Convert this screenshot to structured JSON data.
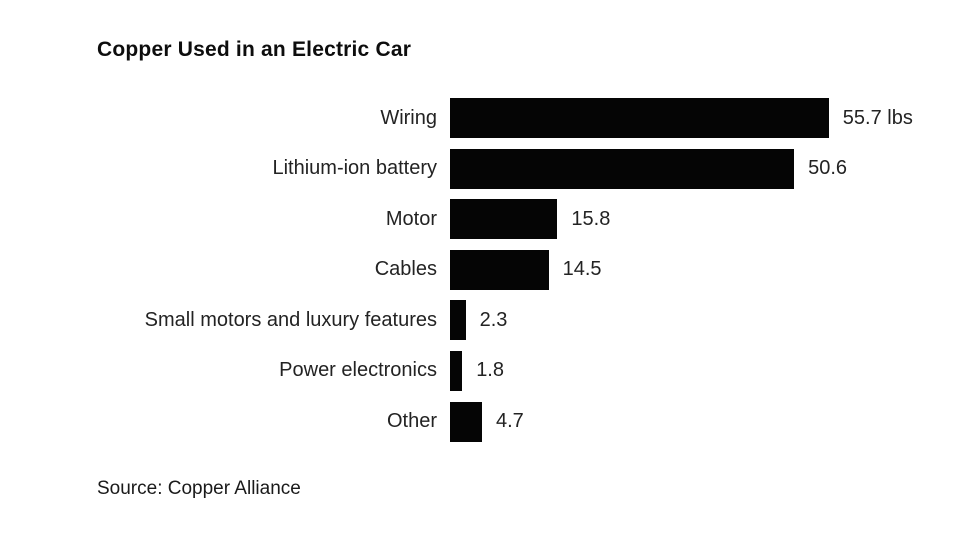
{
  "chart": {
    "title": "Copper Used in an Electric Car",
    "source": "Source: Copper Alliance"
  },
  "chart_data": {
    "type": "bar",
    "orientation": "horizontal",
    "title": "Copper Used in an Electric Car",
    "categories": [
      "Wiring",
      "Lithium-ion battery",
      "Motor",
      "Cables",
      "Small motors and luxury features",
      "Power electronics",
      "Other"
    ],
    "values": [
      55.7,
      50.6,
      15.8,
      14.5,
      2.3,
      1.8,
      4.7
    ],
    "value_labels": [
      "55.7 lbs",
      "50.6",
      "15.8",
      "14.5",
      "2.3",
      "1.8",
      "4.7"
    ],
    "unit": "lbs",
    "xlim": [
      0,
      60
    ],
    "bar_color": "#050505",
    "grid": false,
    "legend": false,
    "source": "Source: Copper Alliance"
  }
}
